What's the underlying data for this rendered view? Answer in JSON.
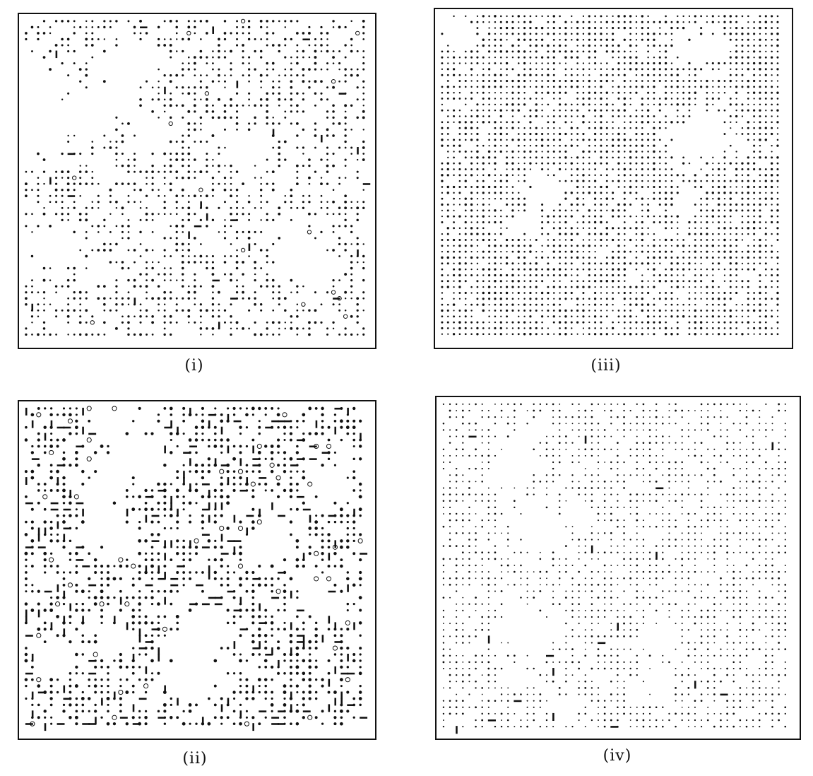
{
  "figure": {
    "panels": [
      {
        "id": "i",
        "label": "(i)",
        "style": "sparse-with-clear-regions",
        "seed": 11,
        "density": 0.55
      },
      {
        "id": "iii",
        "label": "(iii)",
        "style": "dense-uniform",
        "seed": 37,
        "density": 0.88
      },
      {
        "id": "ii",
        "label": "(ii)",
        "style": "heavy-clusters",
        "seed": 23,
        "density": 0.62
      },
      {
        "id": "iv",
        "label": "(iv)",
        "style": "fine-uniform",
        "seed": 53,
        "density": 0.7
      }
    ],
    "colors": {
      "dot": "#111111",
      "border": "#111111",
      "background": "#ffffff"
    }
  }
}
